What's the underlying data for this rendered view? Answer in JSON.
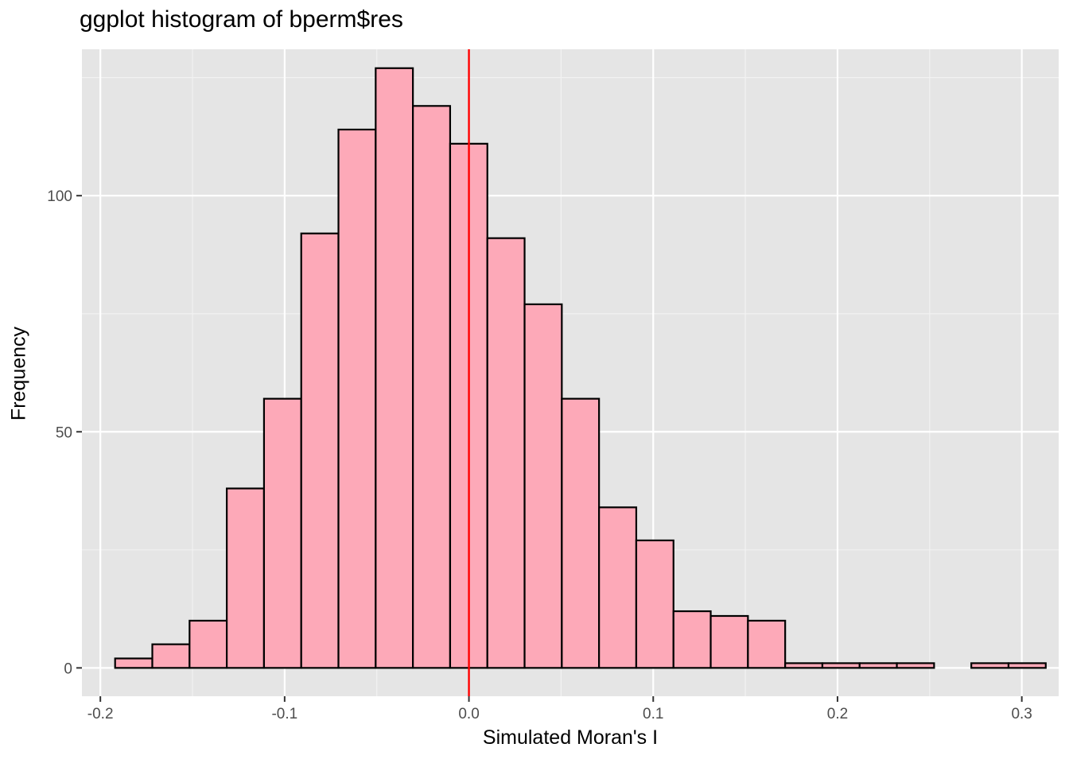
{
  "chart_data": {
    "type": "bar",
    "title": "ggplot histogram of bperm$res",
    "xlabel": "Simulated Moran's I",
    "ylabel": "Frequency",
    "xlim": [
      -0.21,
      0.32
    ],
    "ylim": [
      -6,
      131
    ],
    "x_ticks": [
      -0.2,
      -0.1,
      0.0,
      0.1,
      0.2,
      0.3
    ],
    "x_tick_labels": [
      "-0.2",
      "-0.1",
      "0.0",
      "0.1",
      "0.2",
      "0.3"
    ],
    "y_ticks": [
      0,
      50,
      100
    ],
    "y_tick_labels": [
      "0",
      "50",
      "100"
    ],
    "bin_width": 0.0202,
    "bins_start": -0.192,
    "counts": [
      2,
      5,
      10,
      38,
      57,
      92,
      114,
      127,
      119,
      111,
      91,
      77,
      57,
      34,
      27,
      12,
      11,
      10,
      1,
      1,
      1,
      1,
      0,
      1,
      1
    ],
    "vline": {
      "x": 0.0,
      "color": "#ff0000"
    },
    "fill_color": "#fda9b8",
    "outline_color": "#000000",
    "panel_color": "#e5e5e5",
    "grid": true,
    "legend": "none"
  }
}
